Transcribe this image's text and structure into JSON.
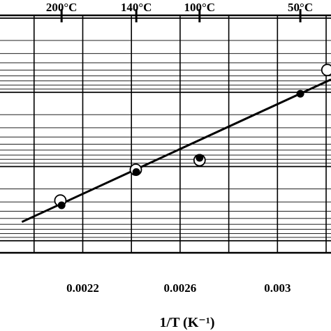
{
  "chart_data": {
    "type": "scatter",
    "xlabel": "1/T (K⁻¹)",
    "x_tick_labels": [
      "0.0022",
      "0.0026",
      "0.003"
    ],
    "x_ticks": [
      0.0022,
      0.0026,
      0.003
    ],
    "xlim": [
      0.00186,
      0.00322
    ],
    "grid": true,
    "y_scale": "log",
    "top_axis": {
      "labels": [
        "200°C",
        "140°C",
        "100°C",
        "50°C"
      ],
      "values": [
        0.002113,
        0.00242,
        0.00268,
        0.003094
      ]
    },
    "series": [
      {
        "marker": "filled-circle",
        "x": [
          0.002113,
          0.00242,
          0.00268,
          0.003094
        ],
        "y_rel": [
          0.2,
          0.34,
          0.4,
          0.67
        ]
      },
      {
        "marker": "open-circle",
        "x": [
          0.002108,
          0.002418,
          0.00268,
          0.003205
        ],
        "y_rel": [
          0.22,
          0.35,
          0.39,
          0.77
        ]
      }
    ],
    "fit_line": {
      "x": [
        0.00195,
        0.00322
      ],
      "y_rel": [
        0.13,
        0.73
      ]
    }
  }
}
